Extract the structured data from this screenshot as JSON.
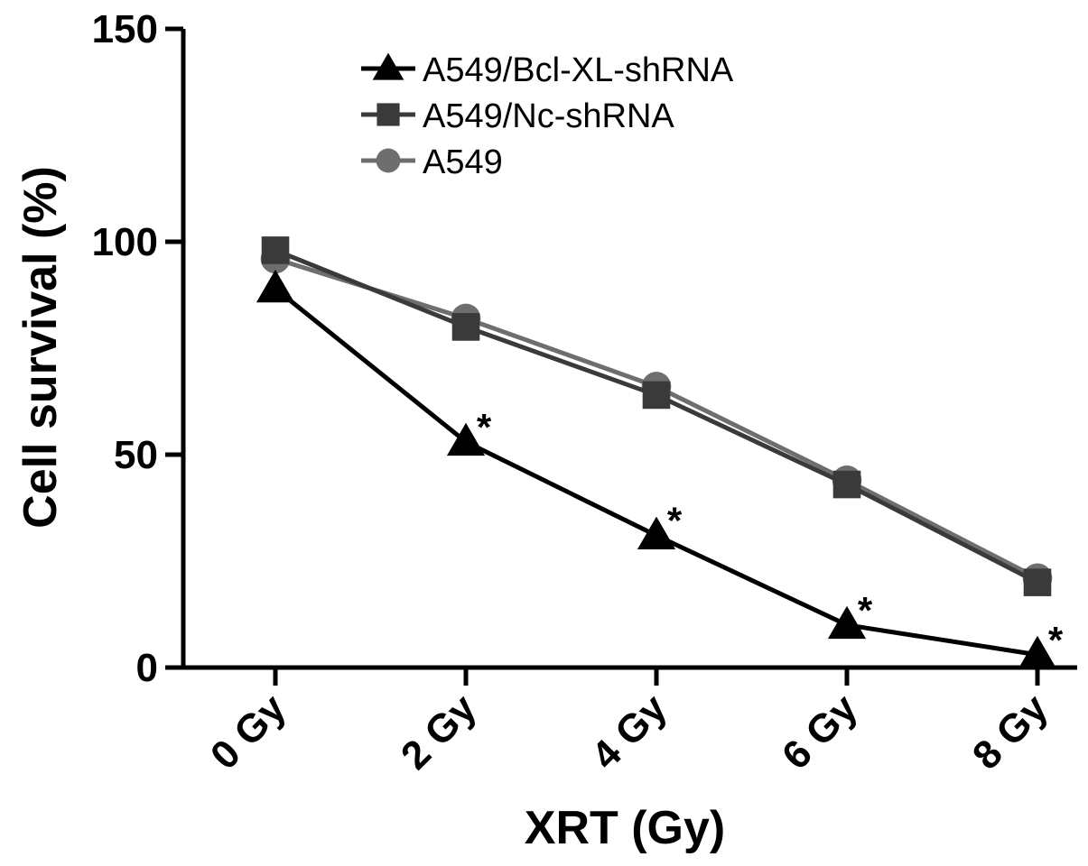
{
  "chart_data": {
    "type": "line",
    "title": "",
    "xlabel": "XRT (Gy)",
    "ylabel": "Cell survival (%)",
    "categories": [
      "0 Gy",
      "2 Gy",
      "4 Gy",
      "6 Gy",
      "8 Gy"
    ],
    "ylim": [
      0,
      150
    ],
    "yticks": [
      0,
      50,
      100,
      150
    ],
    "grid": false,
    "legend_position": "top-right",
    "series": [
      {
        "name": "A549/Bcl-XL-shRNA",
        "values": [
          89,
          53,
          31,
          10,
          3
        ],
        "marker": "triangle",
        "color": "#000000"
      },
      {
        "name": "A549/Nc-shRNA",
        "values": [
          98,
          80,
          64,
          43,
          20
        ],
        "marker": "square",
        "color": "#3a3a3a"
      },
      {
        "name": "A549",
        "values": [
          96,
          82,
          66,
          44,
          21
        ],
        "marker": "circle",
        "color": "#6e6e6e"
      }
    ],
    "annotations": [
      {
        "text": "*",
        "category": "2 Gy",
        "series": "A549/Bcl-XL-shRNA"
      },
      {
        "text": "*",
        "category": "4 Gy",
        "series": "A549/Bcl-XL-shRNA"
      },
      {
        "text": "*",
        "category": "6 Gy",
        "series": "A549/Bcl-XL-shRNA"
      },
      {
        "text": "*",
        "category": "8 Gy",
        "series": "A549/Bcl-XL-shRNA"
      }
    ]
  }
}
